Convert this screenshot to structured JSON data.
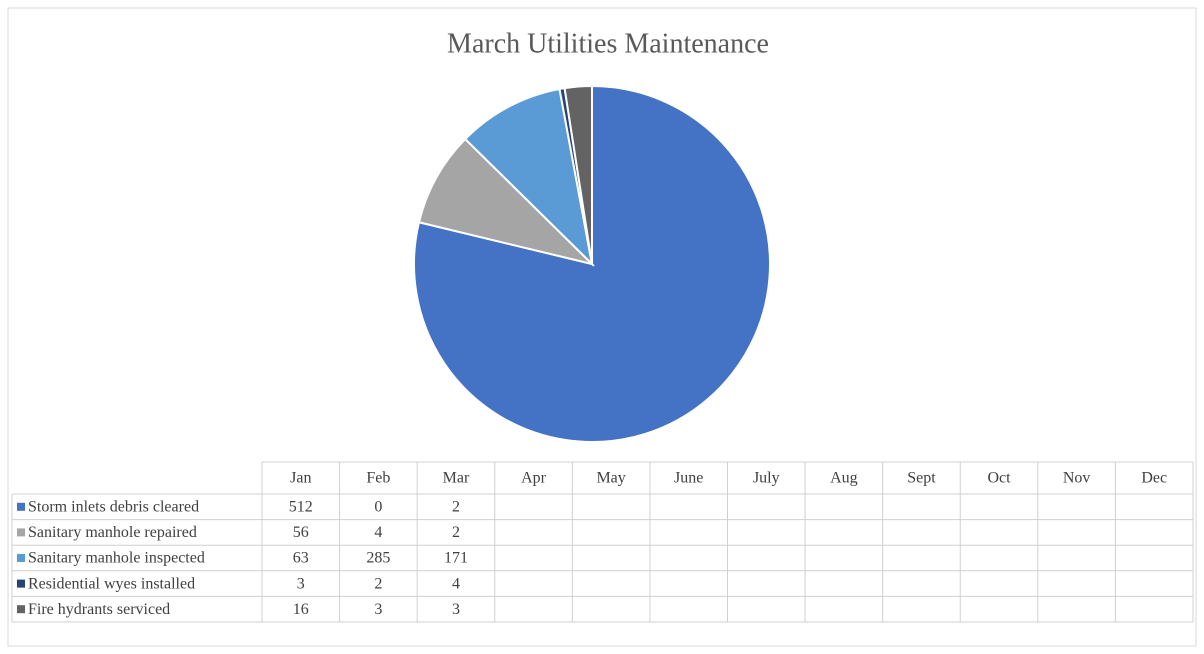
{
  "chart_data": {
    "type": "pie",
    "title": "March Utilities Maintenance",
    "categories": [
      "Jan",
      "Feb",
      "Mar",
      "Apr",
      "May",
      "June",
      "July",
      "Aug",
      "Sept",
      "Oct",
      "Nov",
      "Dec"
    ],
    "series": [
      {
        "name": "Storm inlets debris cleared",
        "color": "#4472c4",
        "values": [
          512,
          0,
          2,
          null,
          null,
          null,
          null,
          null,
          null,
          null,
          null,
          null
        ]
      },
      {
        "name": "Sanitary manhole repaired",
        "color": "#a5a5a5",
        "values": [
          56,
          4,
          2,
          null,
          null,
          null,
          null,
          null,
          null,
          null,
          null,
          null
        ]
      },
      {
        "name": "Sanitary manhole inspected",
        "color": "#5b9bd5",
        "values": [
          63,
          285,
          171,
          null,
          null,
          null,
          null,
          null,
          null,
          null,
          null,
          null
        ]
      },
      {
        "name": "Residential wyes installed",
        "color": "#264478",
        "values": [
          3,
          2,
          4,
          null,
          null,
          null,
          null,
          null,
          null,
          null,
          null,
          null
        ]
      },
      {
        "name": "Fire hydrants serviced",
        "color": "#636363",
        "values": [
          16,
          3,
          3,
          null,
          null,
          null,
          null,
          null,
          null,
          null,
          null,
          null
        ]
      }
    ]
  }
}
